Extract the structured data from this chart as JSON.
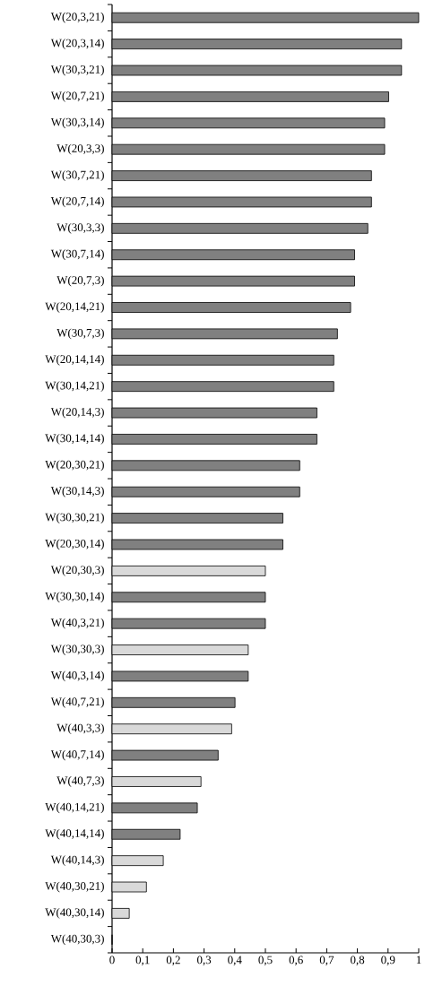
{
  "chart_data": {
    "type": "bar",
    "orientation": "horizontal",
    "categories": [
      "W(20,3,21)",
      "W(20,3,14)",
      "W(30,3,21)",
      "W(20,7,21)",
      "W(30,3,14)",
      "W(20,3,3)",
      "W(30,7,21)",
      "W(20,7,14)",
      "W(30,3,3)",
      "W(30,7,14)",
      "W(20,7,3)",
      "W(20,14,21)",
      "W(30,7,3)",
      "W(20,14,14)",
      "W(30,14,21)",
      "W(20,14,3)",
      "W(30,14,14)",
      "W(20,30,21)",
      "W(30,14,3)",
      "W(30,30,21)",
      "W(20,30,14)",
      "W(20,30,3)",
      "W(30,30,14)",
      "W(40,3,21)",
      "W(30,30,3)",
      "W(40,3,14)",
      "W(40,7,21)",
      "W(40,3,3)",
      "W(40,7,14)",
      "W(40,7,3)",
      "W(40,14,21)",
      "W(40,14,14)",
      "W(40,14,3)",
      "W(40,30,21)",
      "W(40,30,14)",
      "W(40,30,3)"
    ],
    "values": [
      1.0,
      0.944,
      0.944,
      0.902,
      0.889,
      0.889,
      0.846,
      0.846,
      0.834,
      0.791,
      0.791,
      0.778,
      0.735,
      0.723,
      0.723,
      0.668,
      0.668,
      0.612,
      0.612,
      0.557,
      0.557,
      0.5,
      0.5,
      0.5,
      0.444,
      0.444,
      0.401,
      0.39,
      0.346,
      0.29,
      0.278,
      0.222,
      0.167,
      0.112,
      0.056,
      0
    ],
    "colors": [
      "#808080",
      "#808080",
      "#808080",
      "#808080",
      "#808080",
      "#808080",
      "#808080",
      "#808080",
      "#808080",
      "#808080",
      "#808080",
      "#808080",
      "#808080",
      "#808080",
      "#808080",
      "#808080",
      "#808080",
      "#808080",
      "#808080",
      "#808080",
      "#808080",
      "#d9d9d9",
      "#808080",
      "#808080",
      "#d9d9d9",
      "#808080",
      "#808080",
      "#d9d9d9",
      "#808080",
      "#d9d9d9",
      "#808080",
      "#808080",
      "#d9d9d9",
      "#d9d9d9",
      "#d9d9d9",
      "#d9d9d9"
    ],
    "xlim": [
      0,
      1
    ],
    "xticks": [
      0,
      {
        "value": 0.1,
        "label": "0,1"
      },
      {
        "value": 0.2,
        "label": "0,2"
      },
      {
        "value": 0.3,
        "label": "0,3"
      },
      {
        "value": 0.4,
        "label": "0,4"
      },
      {
        "value": 0.5,
        "label": "0,5"
      },
      {
        "value": 0.6,
        "label": "0,6"
      },
      {
        "value": 0.7,
        "label": "0,7"
      },
      {
        "value": 0.8,
        "label": "0,8"
      },
      {
        "value": 0.9,
        "label": "0,9"
      },
      1
    ]
  }
}
